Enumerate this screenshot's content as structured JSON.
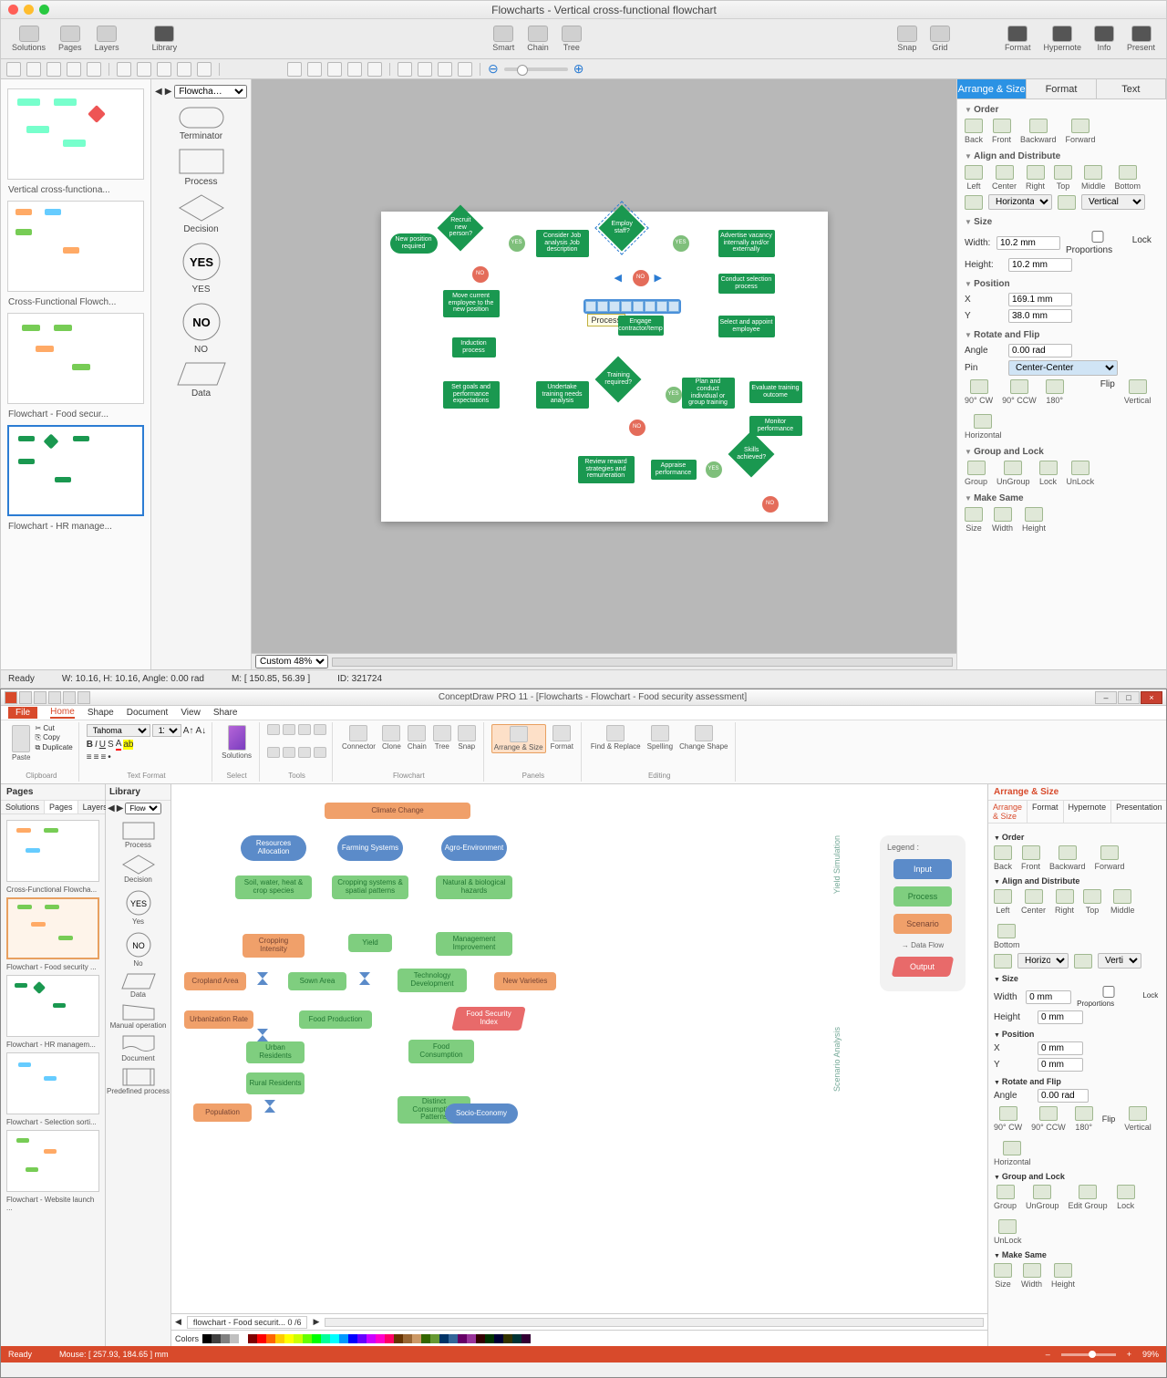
{
  "mac": {
    "title": "Flowcharts - Vertical cross-functional flowchart",
    "toolbar": {
      "left": [
        "Solutions",
        "Pages",
        "Layers"
      ],
      "library": "Library",
      "mid": [
        "Smart",
        "Chain",
        "Tree"
      ],
      "right": [
        "Snap",
        "Grid"
      ],
      "far": [
        "Format",
        "Hypernote",
        "Info",
        "Present"
      ]
    },
    "lib_dropdown": "Flowcha…",
    "shapes": {
      "terminator": "Terminator",
      "process": "Process",
      "decision": "Decision",
      "yes": "YES",
      "no": "NO",
      "data": "Data"
    },
    "thumbs": [
      "Vertical cross-functiona...",
      "Cross-Functional Flowch...",
      "Flowchart - Food secur...",
      "Flowchart - HR manage..."
    ],
    "canvas_footer": {
      "zoom": "Custom 48%"
    },
    "rtabs": [
      "Arrange & Size",
      "Format",
      "Text"
    ],
    "panel": {
      "order": "Order",
      "order_btns": [
        "Back",
        "Front",
        "Backward",
        "Forward"
      ],
      "align": "Align and Distribute",
      "align_btns": [
        "Left",
        "Center",
        "Right",
        "Top",
        "Middle",
        "Bottom"
      ],
      "align_h": "Horizontal",
      "align_v": "Vertical",
      "size": "Size",
      "width_l": "Width:",
      "width_v": "10.2 mm",
      "height_l": "Height:",
      "height_v": "10.2 mm",
      "lock_prop": "Lock Proportions",
      "position": "Position",
      "x_l": "X",
      "x_v": "169.1 mm",
      "y_l": "Y",
      "y_v": "38.0 mm",
      "rotate": "Rotate and Flip",
      "angle_l": "Angle",
      "angle_v": "0.00 rad",
      "pin_l": "Pin",
      "pin_v": "Center-Center",
      "rotate_btns": [
        "90° CW",
        "90° CCW",
        "180°"
      ],
      "flip_l": "Flip",
      "flip_btns": [
        "Vertical",
        "Horizontal"
      ],
      "group": "Group and Lock",
      "group_btns": [
        "Group",
        "UnGroup",
        "Lock",
        "UnLock"
      ],
      "same": "Make Same",
      "same_btns": [
        "Size",
        "Width",
        "Height"
      ]
    },
    "status": {
      "ready": "Ready",
      "wh": "W: 10.16,  H: 10.16,  Angle: 0.00 rad",
      "mouse": "M: [ 150.85, 56.39 ]",
      "id": "ID: 321724"
    },
    "flow": {
      "tooltip": "Process",
      "yes": "YES",
      "no": "NO",
      "nodes": {
        "new_pos": "New position required",
        "recruit": "Recruit new person?",
        "consider": "Consider Job analysis Job description",
        "employ": "Employ staff?",
        "advertise": "Advertise vacancy internally and/or externally",
        "move": "Move current employee to the new position",
        "conduct_sel": "Conduct selection process",
        "engage": "Engage contractor/temp",
        "select_app": "Select and appoint employee",
        "induction": "Induction process",
        "set_goals": "Set goals and performance expectations",
        "undertake": "Undertake training needs analysis",
        "training_req": "Training required?",
        "plan_conduct": "Plan and conduct individual or group training",
        "evaluate": "Evaluate training outcome",
        "monitor": "Monitor performance",
        "review": "Review reward strategies and remuneration",
        "appraise": "Appraise performance",
        "skills": "Skills achieved?"
      }
    }
  },
  "win": {
    "title": "ConceptDraw PRO 11 - [Flowcharts - Flowchart - Food security assessment]",
    "menus": [
      "File",
      "Home",
      "Shape",
      "Document",
      "View",
      "Share"
    ],
    "ribbon": {
      "clipboard": {
        "paste": "Paste",
        "cut": "Cut",
        "copy": "Copy",
        "dup": "Duplicate",
        "label": "Clipboard"
      },
      "font": {
        "name": "Tahoma",
        "size": "11",
        "label": "Text Format"
      },
      "solutions": {
        "btn": "Solutions",
        "label": "Select"
      },
      "tools": {
        "label": "Tools"
      },
      "flowchart": {
        "btns": [
          "Connector",
          "Clone",
          "Chain",
          "Tree",
          "Snap"
        ],
        "label": "Flowchart"
      },
      "panels": {
        "btns": [
          "Arrange & Size",
          "Format"
        ],
        "label": "Panels"
      },
      "editing": {
        "btns": [
          "Find & Replace",
          "Spelling",
          "Change Shape"
        ],
        "label": "Editing"
      }
    },
    "pages": {
      "title": "Pages",
      "tabs": [
        "Solutions",
        "Pages",
        "Layers"
      ],
      "thumbs": [
        "Cross-Functional Flowcha...",
        "Flowchart - Food security ...",
        "Flowchart - HR managem...",
        "Flowchart - Selection sorti...",
        "Flowchart - Website launch ..."
      ]
    },
    "lib": {
      "title": "Library",
      "dropdown": "Flowch...",
      "shapes": [
        "Process",
        "Decision",
        "Yes",
        "No",
        "Data",
        "Manual operation",
        "Document",
        "Predefined process"
      ]
    },
    "canvas_tab": "flowchart - Food securit...  0 /6",
    "colors_label": "Colors",
    "right": {
      "title": "Arrange & Size",
      "tabs": [
        "Arrange & Size",
        "Format",
        "Hypernote",
        "Presentation"
      ],
      "sections": {
        "order": "Order",
        "order_btns": [
          "Back",
          "Front",
          "Backward",
          "Forward"
        ],
        "align": "Align and Distribute",
        "align_btns": [
          "Left",
          "Center",
          "Right",
          "Top",
          "Middle",
          "Bottom"
        ],
        "align_h": "Horizontal",
        "align_v": "Vertical",
        "size": "Size",
        "width_l": "Width",
        "width_v": "0 mm",
        "height_l": "Height",
        "height_v": "0 mm",
        "lock": "Lock Proportions",
        "position": "Position",
        "x_l": "X",
        "x_v": "0 mm",
        "y_l": "Y",
        "y_v": "0 mm",
        "rotate": "Rotate and Flip",
        "angle_l": "Angle",
        "angle_v": "0.00 rad",
        "rotate_btns": [
          "90° CW",
          "90° CCW",
          "180°"
        ],
        "flip_l": "Flip",
        "flip_btns": [
          "Vertical",
          "Horizontal"
        ],
        "group": "Group and Lock",
        "group_btns": [
          "Group",
          "UnGroup",
          "Edit Group",
          "Lock",
          "UnLock"
        ],
        "same": "Make Same",
        "same_btns": [
          "Size",
          "Width",
          "Height"
        ]
      }
    },
    "status": {
      "ready": "Ready",
      "mouse": "Mouse: [ 257.93, 184.65 ] mm",
      "zoom": "99%"
    },
    "flow": {
      "legend_title": "Legend :",
      "legend": {
        "input": "Input",
        "process": "Process",
        "scenario": "Scenario",
        "dataflow": "Data Flow",
        "output": "Output"
      },
      "vlabels": {
        "yield": "Yield Simulation",
        "scenario": "Scenario Analysis"
      },
      "nodes": {
        "climate": "Climate Change",
        "resources": "Resources Allocation",
        "farming": "Farming Systems",
        "agro": "Agro-Environment",
        "soil": "Soil, water, heat & crop species",
        "cropsys": "Cropping systems & spatial patterns",
        "hazards": "Natural & biological hazards",
        "cropint": "Cropping Intensity",
        "yield": "Yield",
        "mgmt": "Management Improvement",
        "cropland": "Cropland Area",
        "sown": "Sown Area",
        "techdev": "Technology Development",
        "newvar": "New Varieties",
        "urban": "Urbanization Rate",
        "foodprod": "Food Production",
        "fsi": "Food Security Index",
        "urbanres": "Urban Residents",
        "foodcons": "Food Consumption",
        "ruralres": "Rural Residents",
        "pop": "Population",
        "distinct": "Distinct Consumption Patterns",
        "socio": "Socio-Economy"
      }
    },
    "palette": [
      "#000000",
      "#404040",
      "#808080",
      "#c0c0c0",
      "#ffffff",
      "#800000",
      "#ff0000",
      "#ff6600",
      "#ffcc00",
      "#ffff00",
      "#ccff00",
      "#66ff00",
      "#00ff00",
      "#00ff99",
      "#00ffff",
      "#0099ff",
      "#0000ff",
      "#6600ff",
      "#cc00ff",
      "#ff00cc",
      "#ff0066",
      "#663300",
      "#996633",
      "#cc9966",
      "#336600",
      "#669933",
      "#003366",
      "#336699",
      "#660066",
      "#993399",
      "#330000",
      "#003300",
      "#000033",
      "#333300",
      "#003333",
      "#330033"
    ]
  }
}
